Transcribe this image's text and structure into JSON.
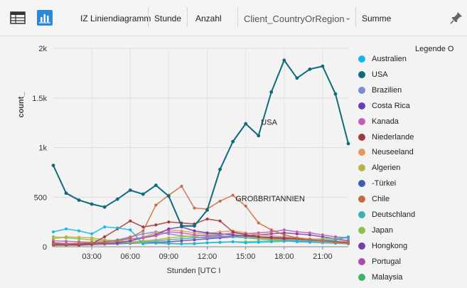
{
  "toolbar": {
    "viz_title": "IZ Liniendiagramm",
    "axis_field": "Stunde",
    "value_field": "Anzahl",
    "split_field": "Client_CountryOrRegion",
    "aggregation": "Summe",
    "icons": [
      "table-icon",
      "chart-icon",
      "chevron-down-icon",
      "pin-icon"
    ]
  },
  "legend": {
    "title": "Legende O",
    "items": [
      {
        "label": "Australien",
        "color": "#13b5ea"
      },
      {
        "label": "USA",
        "color": "#0f6a7c"
      },
      {
        "label": "Brazilien",
        "color": "#7a8bd6"
      },
      {
        "label": "Costa Rica",
        "color": "#6a3fb5"
      },
      {
        "label": "Kanada",
        "color": "#c25fb8"
      },
      {
        "label": "Niederlande",
        "color": "#a33a3a"
      },
      {
        "label": "Neuseeland",
        "color": "#e4995a"
      },
      {
        "label": "Algerien",
        "color": "#b9b343"
      },
      {
        "label": "-Türkei",
        "color": "#3f5cb0"
      },
      {
        "label": "Chile",
        "color": "#c86a45"
      },
      {
        "label": "Deutschland",
        "color": "#3ab0b8"
      },
      {
        "label": "Japan",
        "color": "#88c34a"
      },
      {
        "label": "Hongkong",
        "color": "#7a3da8"
      },
      {
        "label": "Portugal",
        "color": "#b04aa8"
      },
      {
        "label": "Malaysia",
        "color": "#3cb36a"
      }
    ]
  },
  "chart_data": {
    "type": "line",
    "xlabel": "Stunden [UTC I",
    "ylabel": "count_",
    "ylim": [
      0,
      2000
    ],
    "yticks": [
      0,
      500,
      1000,
      1500,
      2000
    ],
    "ytick_labels": [
      "0",
      "500",
      "1k",
      "1.5k",
      "2k"
    ],
    "xlim": [
      0,
      23
    ],
    "xticks": [
      3,
      6,
      9,
      12,
      15,
      18,
      21
    ],
    "xtick_labels": [
      "03:00",
      "06:00",
      "09:00",
      "12:00",
      "15:00",
      "18:00",
      "21:00"
    ],
    "grid": true,
    "legend_position": "right",
    "x": [
      0,
      1,
      2,
      3,
      4,
      5,
      6,
      7,
      8,
      9,
      10,
      11,
      12,
      13,
      14,
      15,
      16,
      17,
      18,
      19,
      20,
      21,
      22,
      23
    ],
    "annotations": [
      {
        "text": "USA",
        "x": 16.2,
        "y": 1230
      },
      {
        "text": "GROßBRITANNIEN",
        "x": 14.2,
        "y": 460
      }
    ],
    "series": [
      {
        "name": "USA",
        "color": "#0f6a7c",
        "values": [
          820,
          540,
          470,
          430,
          400,
          480,
          570,
          530,
          620,
          510,
          210,
          210,
          370,
          780,
          1060,
          1240,
          1120,
          1560,
          1880,
          1700,
          1790,
          1820,
          1540,
          1040
        ]
      },
      {
        "name": "",
        "color": "#c86a45",
        "values": [
          30,
          30,
          35,
          40,
          45,
          60,
          90,
          160,
          420,
          520,
          610,
          390,
          380,
          460,
          520,
          410,
          240,
          170,
          120,
          90,
          70,
          60,
          45,
          35
        ]
      },
      {
        "name": "Australien",
        "color": "#13b5ea",
        "values": [
          150,
          180,
          160,
          130,
          200,
          190,
          170,
          30,
          40,
          35,
          30,
          30,
          40,
          45,
          50,
          40,
          45,
          50,
          55,
          60,
          55,
          65,
          70,
          100
        ]
      },
      {
        "name": "Niederlande",
        "color": "#a33a3a",
        "values": [
          40,
          30,
          20,
          30,
          100,
          180,
          260,
          200,
          220,
          250,
          240,
          230,
          280,
          260,
          150,
          120,
          100,
          90,
          80,
          80,
          70,
          60,
          50,
          40
        ]
      },
      {
        "name": "Kanada",
        "color": "#c25fb8",
        "values": [
          60,
          55,
          50,
          45,
          50,
          60,
          80,
          90,
          110,
          150,
          140,
          120,
          110,
          120,
          140,
          130,
          140,
          150,
          170,
          150,
          140,
          120,
          100,
          90
        ]
      },
      {
        "name": "Costa Rica",
        "color": "#6a3fb5",
        "values": [
          20,
          20,
          25,
          30,
          35,
          40,
          60,
          90,
          120,
          180,
          200,
          160,
          140,
          130,
          120,
          110,
          100,
          95,
          90,
          80,
          70,
          60,
          50,
          40
        ]
      },
      {
        "name": "Neuseeland",
        "color": "#e4995a",
        "values": [
          10,
          15,
          20,
          25,
          30,
          40,
          60,
          100,
          140,
          170,
          160,
          140,
          130,
          150,
          160,
          140,
          120,
          110,
          100,
          90,
          80,
          70,
          60,
          50
        ]
      },
      {
        "name": "Algerien",
        "color": "#b9b343",
        "values": [
          80,
          100,
          95,
          90,
          70,
          60,
          50,
          60,
          70,
          90,
          100,
          110,
          120,
          130,
          120,
          100,
          90,
          80,
          70,
          65,
          60,
          55,
          50,
          45
        ]
      },
      {
        "name": "Brazilien",
        "color": "#7a8bd6",
        "values": [
          30,
          30,
          35,
          40,
          50,
          70,
          100,
          130,
          150,
          130,
          110,
          100,
          90,
          100,
          110,
          100,
          90,
          80,
          70,
          60,
          55,
          50,
          45,
          40
        ]
      },
      {
        "name": "Japan",
        "color": "#88c34a",
        "values": [
          100,
          90,
          80,
          70,
          60,
          50,
          45,
          40,
          35,
          30,
          30,
          35,
          40,
          45,
          50,
          50,
          55,
          60,
          65,
          70,
          75,
          80,
          85,
          90
        ]
      },
      {
        "name": "Deutschland",
        "color": "#3ab0b8",
        "values": [
          20,
          20,
          20,
          25,
          30,
          35,
          40,
          50,
          60,
          70,
          80,
          90,
          100,
          110,
          100,
          90,
          80,
          70,
          60,
          50,
          45,
          40,
          35,
          30
        ]
      },
      {
        "name": "Hongkong",
        "color": "#7a3da8",
        "values": [
          15,
          15,
          15,
          20,
          25,
          30,
          35,
          40,
          45,
          50,
          60,
          70,
          80,
          90,
          100,
          110,
          120,
          130,
          140,
          130,
          120,
          100,
          80,
          60
        ]
      }
    ]
  }
}
